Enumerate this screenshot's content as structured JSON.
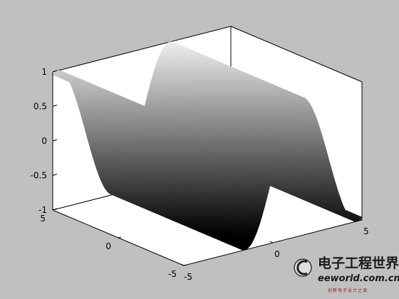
{
  "chart_data": {
    "type": "surface",
    "function": "z = sin(x)",
    "x_range": [
      -5,
      5
    ],
    "y_range": [
      -5,
      5
    ],
    "zlim": [
      -1,
      1
    ],
    "colormap": "gray",
    "shading": "interp",
    "grid": false,
    "x_ticks": [
      -5,
      0,
      5
    ],
    "y_ticks": [
      -5,
      0,
      5
    ],
    "z_ticks": [
      -1,
      -0.5,
      0,
      0.5,
      1
    ],
    "tick_labels": {
      "x": [
        "-5",
        "0",
        "5"
      ],
      "y": [
        "-5",
        "0",
        "5"
      ],
      "z": [
        "-1",
        "-0.5",
        "0",
        "0.5",
        "1"
      ]
    }
  },
  "watermark": {
    "title": "电子工程世界",
    "site": "eeworld.com.cn",
    "subtitle": "创新电子设计之源",
    "logo_icon": "eeworld-logo-icon"
  }
}
